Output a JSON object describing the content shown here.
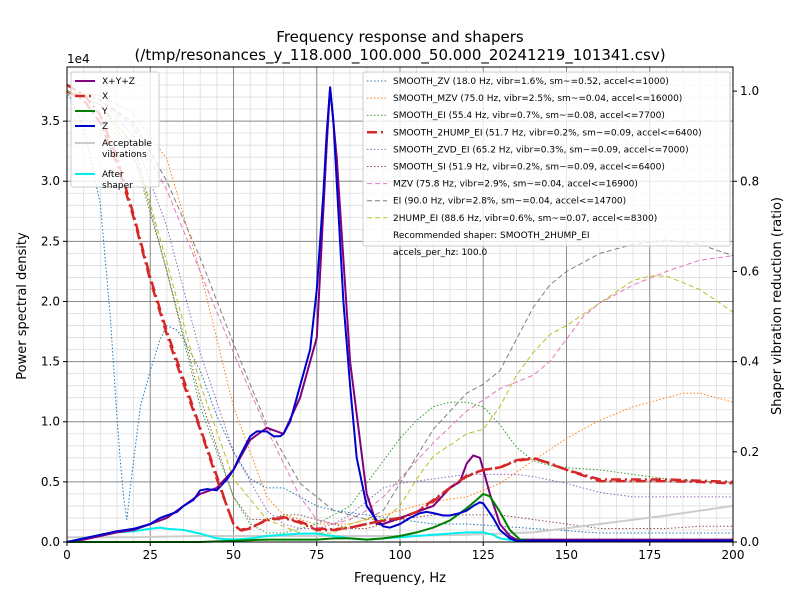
{
  "chart_data": {
    "type": "line",
    "title": "Frequency response and shapers",
    "subtitle": "(/tmp/resonances_y_118.000_100.000_50.000_20241219_101341.csv)",
    "xlabel": "Frequency, Hz",
    "ylabel": "Power spectral density",
    "y2label": "Shaper vibration reduction (ratio)",
    "y_multiplier": "1e4",
    "xlim": [
      0,
      200
    ],
    "ylim": [
      0,
      3.95
    ],
    "y2lim": [
      0,
      1.0535
    ],
    "grid": true,
    "x_ticks": [
      0,
      25,
      50,
      75,
      100,
      125,
      150,
      175,
      200
    ],
    "x_tick_labels": [
      "0",
      "25",
      "50",
      "75",
      "100",
      "125",
      "150",
      "175",
      "200"
    ],
    "y_ticks": [
      0,
      0.5,
      1.0,
      1.5,
      2.0,
      2.5,
      3.0,
      3.5
    ],
    "y_tick_labels": [
      "0.0",
      "0.5",
      "1.0",
      "1.5",
      "2.0",
      "2.5",
      "3.0",
      "3.5"
    ],
    "y2_ticks": [
      0,
      0.2,
      0.4,
      0.6,
      0.8,
      1.0
    ],
    "y2_tick_labels": [
      "0.0",
      "0.2",
      "0.4",
      "0.6",
      "0.8",
      "1.0"
    ],
    "legend_left_placement": "top-left",
    "legend_right_placement": "top-right",
    "psd_series": [
      {
        "name": "X+Y+Z",
        "color": "#800080",
        "width": 2.0,
        "dash": "",
        "x": [
          0,
          5,
          10,
          15,
          20,
          25,
          30,
          35,
          40,
          45,
          50,
          55,
          60,
          65,
          70,
          75,
          78,
          79,
          81,
          85,
          90,
          93,
          95,
          100,
          105,
          110,
          115,
          118,
          120,
          122,
          124,
          125,
          127,
          130,
          133,
          135,
          140,
          150,
          160,
          170,
          180,
          190,
          200
        ],
        "y": [
          0,
          0.02,
          0.05,
          0.08,
          0.1,
          0.15,
          0.2,
          0.3,
          0.4,
          0.45,
          0.6,
          0.85,
          0.95,
          0.9,
          1.2,
          1.7,
          3.3,
          3.78,
          3.2,
          1.5,
          0.4,
          0.15,
          0.15,
          0.2,
          0.25,
          0.3,
          0.45,
          0.5,
          0.65,
          0.72,
          0.7,
          0.6,
          0.4,
          0.15,
          0.05,
          0.02,
          0.02,
          0.02,
          0.02,
          0.02,
          0.02,
          0.02,
          0.02
        ]
      },
      {
        "name": "X",
        "color": "#d62728",
        "width": 2.5,
        "dash": "10,4,2,4",
        "x": [
          0,
          5,
          10,
          15,
          20,
          25,
          30,
          35,
          40,
          45,
          48,
          50,
          52,
          55,
          60,
          65,
          70,
          75,
          80,
          85,
          90,
          95,
          100,
          105,
          110,
          115,
          120,
          125,
          130,
          135,
          140,
          145,
          150,
          160,
          170,
          180,
          190,
          200
        ],
        "y": [
          3.8,
          3.72,
          3.55,
          3.2,
          2.72,
          2.2,
          1.75,
          1.35,
          0.95,
          0.55,
          0.3,
          0.15,
          0.1,
          0.12,
          0.18,
          0.2,
          0.16,
          0.1,
          0.1,
          0.12,
          0.15,
          0.18,
          0.2,
          0.25,
          0.35,
          0.45,
          0.55,
          0.6,
          0.62,
          0.68,
          0.7,
          0.65,
          0.6,
          0.52,
          0.52,
          0.52,
          0.51,
          0.5
        ]
      },
      {
        "name": "Y",
        "color": "#008000",
        "width": 2.0,
        "dash": "",
        "x": [
          0,
          10,
          20,
          30,
          40,
          50,
          60,
          70,
          75,
          80,
          85,
          90,
          95,
          100,
          105,
          110,
          115,
          120,
          123,
          125,
          127,
          130,
          133,
          136,
          140,
          150,
          200
        ],
        "y": [
          0,
          0,
          0,
          0,
          0,
          0.01,
          0.02,
          0.02,
          0.02,
          0.03,
          0.03,
          0.02,
          0.03,
          0.05,
          0.08,
          0.12,
          0.18,
          0.28,
          0.35,
          0.4,
          0.38,
          0.25,
          0.1,
          0.02,
          0.01,
          0.01,
          0.01
        ]
      },
      {
        "name": "Z",
        "color": "#0000cc",
        "width": 2.0,
        "dash": "",
        "x": [
          0,
          5,
          10,
          15,
          20,
          25,
          28,
          30,
          33,
          35,
          38,
          40,
          42,
          45,
          48,
          50,
          52,
          55,
          57,
          60,
          62,
          64,
          65,
          67,
          70,
          73,
          75,
          77,
          78,
          79,
          80,
          81,
          83,
          85,
          87,
          90,
          93,
          95,
          97,
          100,
          103,
          106,
          108,
          110,
          113,
          115,
          118,
          120,
          122,
          124,
          125,
          126,
          128,
          130,
          133,
          135,
          140,
          150,
          160,
          200
        ],
        "y": [
          0,
          0.03,
          0.06,
          0.09,
          0.11,
          0.15,
          0.2,
          0.22,
          0.25,
          0.3,
          0.35,
          0.43,
          0.44,
          0.43,
          0.52,
          0.6,
          0.72,
          0.88,
          0.92,
          0.92,
          0.88,
          0.88,
          0.9,
          1.0,
          1.3,
          1.6,
          2.1,
          2.9,
          3.4,
          3.78,
          3.5,
          3.0,
          2.0,
          1.3,
          0.7,
          0.3,
          0.18,
          0.13,
          0.12,
          0.15,
          0.2,
          0.24,
          0.25,
          0.24,
          0.22,
          0.22,
          0.24,
          0.26,
          0.3,
          0.33,
          0.32,
          0.28,
          0.2,
          0.1,
          0.03,
          0.01,
          0.01,
          0.01,
          0.01,
          0.01
        ]
      },
      {
        "name": "Acceptable vibrations",
        "color": "#cccccc",
        "width": 2.0,
        "dash": "",
        "x": [
          0,
          20,
          40,
          60,
          80,
          100,
          120,
          140,
          160,
          180,
          200
        ],
        "y": [
          0.04,
          0.04,
          0.05,
          0.05,
          0.05,
          0.05,
          0.06,
          0.08,
          0.15,
          0.22,
          0.3
        ]
      },
      {
        "name": "After shaper",
        "color": "#00eeee",
        "width": 2.0,
        "dash": "",
        "x": [
          0,
          5,
          10,
          15,
          20,
          25,
          28,
          30,
          35,
          40,
          45,
          50,
          55,
          60,
          65,
          70,
          75,
          80,
          85,
          90,
          95,
          100,
          110,
          120,
          125,
          128,
          130,
          135,
          150,
          200
        ],
        "y": [
          0,
          0.03,
          0.06,
          0.08,
          0.09,
          0.11,
          0.12,
          0.11,
          0.1,
          0.07,
          0.03,
          0.02,
          0.03,
          0.05,
          0.06,
          0.07,
          0.07,
          0.05,
          0.03,
          0.02,
          0.03,
          0.04,
          0.06,
          0.08,
          0.08,
          0.06,
          0.03,
          0.01,
          0.01,
          0.01
        ]
      }
    ],
    "shaper_series": [
      {
        "name": "SMOOTH_ZV (18.0 Hz, vibr=1.6%, sm~=0.52, accel<=1000)",
        "color": "#1f77b4",
        "width": 1.0,
        "dash": "1.5,2",
        "x": [
          0,
          5,
          10,
          13,
          15,
          16,
          17,
          18,
          19,
          20,
          22,
          25,
          28,
          30,
          33,
          35,
          40,
          45,
          50,
          55,
          60,
          65,
          70,
          75,
          80,
          85,
          90,
          100,
          110,
          120,
          130,
          140,
          150,
          160,
          170,
          180,
          190,
          200
        ],
        "y": [
          1.0,
          0.92,
          0.75,
          0.5,
          0.28,
          0.18,
          0.1,
          0.05,
          0.12,
          0.18,
          0.3,
          0.38,
          0.45,
          0.48,
          0.47,
          0.45,
          0.38,
          0.28,
          0.2,
          0.14,
          0.12,
          0.12,
          0.1,
          0.08,
          0.07,
          0.065,
          0.06,
          0.05,
          0.04,
          0.04,
          0.035,
          0.03,
          0.025,
          0.02,
          0.02,
          0.02,
          0.02,
          0.02
        ]
      },
      {
        "name": "SMOOTH_MZV (75.0 Hz, vibr=2.5%, sm~=0.04, accel<=16000)",
        "color": "#ff7f0e",
        "width": 1.0,
        "dash": "1.5,2",
        "x": [
          0,
          10,
          20,
          30,
          40,
          50,
          60,
          65,
          70,
          75,
          80,
          85,
          90,
          100,
          110,
          120,
          130,
          140,
          150,
          160,
          170,
          180,
          185,
          190,
          195,
          200
        ],
        "y": [
          1.0,
          0.99,
          0.95,
          0.85,
          0.6,
          0.3,
          0.1,
          0.06,
          0.05,
          0.04,
          0.04,
          0.04,
          0.05,
          0.07,
          0.09,
          0.1,
          0.13,
          0.18,
          0.23,
          0.27,
          0.3,
          0.32,
          0.33,
          0.33,
          0.32,
          0.31
        ]
      },
      {
        "name": "SMOOTH_EI (55.4 Hz, vibr=0.7%, sm~=0.08, accel<=7700)",
        "color": "#2ca02c",
        "width": 1.0,
        "dash": "1.5,2",
        "x": [
          0,
          10,
          20,
          30,
          40,
          50,
          55,
          60,
          65,
          70,
          75,
          80,
          85,
          90,
          95,
          100,
          105,
          110,
          115,
          120,
          125,
          130,
          135,
          140,
          145,
          150,
          160,
          170,
          180,
          190,
          200
        ],
        "y": [
          1.0,
          0.97,
          0.88,
          0.6,
          0.3,
          0.1,
          0.04,
          0.02,
          0.02,
          0.03,
          0.04,
          0.06,
          0.08,
          0.13,
          0.18,
          0.23,
          0.27,
          0.3,
          0.31,
          0.31,
          0.3,
          0.26,
          0.21,
          0.18,
          0.17,
          0.165,
          0.16,
          0.15,
          0.14,
          0.135,
          0.13
        ]
      },
      {
        "name": "SMOOTH_2HUMP_EI (51.7 Hz, vibr=0.2%, sm~=0.09, accel<=6400)",
        "color": "#d62728",
        "width": 2.5,
        "dash": "10,4,2,4",
        "x": [
          0,
          5,
          10,
          15,
          20,
          25,
          30,
          35,
          40,
          45,
          48,
          50,
          52,
          55,
          60,
          65,
          70,
          75,
          80,
          85,
          90,
          95,
          100,
          105,
          110,
          115,
          120,
          125,
          130,
          135,
          140,
          145,
          150,
          160,
          170,
          180,
          190,
          200
        ],
        "y": [
          1.0,
          0.98,
          0.93,
          0.84,
          0.72,
          0.58,
          0.46,
          0.35,
          0.25,
          0.14,
          0.08,
          0.04,
          0.025,
          0.03,
          0.05,
          0.055,
          0.045,
          0.03,
          0.028,
          0.032,
          0.04,
          0.047,
          0.052,
          0.066,
          0.09,
          0.12,
          0.145,
          0.16,
          0.165,
          0.18,
          0.185,
          0.175,
          0.16,
          0.135,
          0.135,
          0.135,
          0.133,
          0.13
        ]
      },
      {
        "name": "SMOOTH_ZVD_EI (65.2 Hz, vibr=0.3%, sm~=0.09, accel<=7000)",
        "color": "#9467bd",
        "width": 1.0,
        "dash": "1.5,2",
        "x": [
          0,
          10,
          20,
          30,
          40,
          50,
          60,
          65,
          70,
          75,
          80,
          85,
          90,
          95,
          100,
          110,
          120,
          125,
          130,
          135,
          140,
          150,
          160,
          170,
          180,
          190,
          200
        ],
        "y": [
          1.0,
          0.98,
          0.9,
          0.7,
          0.42,
          0.2,
          0.07,
          0.04,
          0.03,
          0.03,
          0.04,
          0.06,
          0.09,
          0.12,
          0.13,
          0.14,
          0.15,
          0.15,
          0.15,
          0.15,
          0.145,
          0.13,
          0.11,
          0.1,
          0.1,
          0.1,
          0.1
        ]
      },
      {
        "name": "SMOOTH_SI (51.9 Hz, vibr=0.2%, sm~=0.09, accel<=6400)",
        "color": "#8c564b",
        "width": 1.0,
        "dash": "1.5,2",
        "x": [
          0,
          10,
          20,
          30,
          40,
          50,
          55,
          60,
          65,
          70,
          75,
          80,
          85,
          90,
          95,
          100,
          110,
          120,
          130,
          140,
          150,
          160,
          170,
          180,
          190,
          200
        ],
        "y": [
          1.0,
          0.97,
          0.86,
          0.6,
          0.32,
          0.1,
          0.05,
          0.05,
          0.06,
          0.06,
          0.05,
          0.04,
          0.03,
          0.03,
          0.04,
          0.05,
          0.06,
          0.06,
          0.06,
          0.05,
          0.04,
          0.03,
          0.03,
          0.03,
          0.035,
          0.035
        ]
      },
      {
        "name": "MZV (75.8 Hz, vibr=2.9%, sm~=0.04, accel<=16900)",
        "color": "#e377c2",
        "width": 1.0,
        "dash": "5,3",
        "x": [
          0,
          10,
          20,
          30,
          40,
          50,
          60,
          70,
          75,
          80,
          85,
          90,
          95,
          100,
          110,
          120,
          130,
          140,
          145,
          150,
          155,
          160,
          170,
          180,
          190,
          200
        ],
        "y": [
          1.0,
          0.98,
          0.92,
          0.78,
          0.6,
          0.42,
          0.25,
          0.1,
          0.05,
          0.04,
          0.05,
          0.07,
          0.1,
          0.14,
          0.22,
          0.29,
          0.34,
          0.37,
          0.4,
          0.45,
          0.5,
          0.53,
          0.57,
          0.6,
          0.625,
          0.635
        ]
      },
      {
        "name": "EI (90.0 Hz, vibr=2.8%, sm~=0.04, accel<=14700)",
        "color": "#7f7f7f",
        "width": 1.0,
        "dash": "5,3",
        "x": [
          0,
          10,
          20,
          30,
          40,
          50,
          60,
          70,
          80,
          90,
          95,
          100,
          110,
          120,
          125,
          130,
          135,
          140,
          145,
          150,
          160,
          170,
          180,
          190,
          200
        ],
        "y": [
          1.0,
          0.98,
          0.93,
          0.8,
          0.63,
          0.44,
          0.26,
          0.13,
          0.07,
          0.05,
          0.07,
          0.13,
          0.25,
          0.33,
          0.35,
          0.38,
          0.45,
          0.52,
          0.57,
          0.6,
          0.64,
          0.66,
          0.67,
          0.66,
          0.635
        ]
      },
      {
        "name": "2HUMP_EI (88.6 Hz, vibr=0.6%, sm~=0.07, accel<=8300)",
        "color": "#bcbd22",
        "width": 1.0,
        "dash": "5,3",
        "x": [
          0,
          10,
          20,
          30,
          40,
          50,
          60,
          70,
          80,
          85,
          90,
          95,
          100,
          105,
          110,
          120,
          125,
          130,
          135,
          140,
          145,
          150,
          160,
          170,
          175,
          180,
          190,
          200
        ],
        "y": [
          1.0,
          0.97,
          0.88,
          0.62,
          0.35,
          0.14,
          0.05,
          0.02,
          0.02,
          0.04,
          0.05,
          0.05,
          0.08,
          0.14,
          0.19,
          0.24,
          0.25,
          0.3,
          0.37,
          0.42,
          0.46,
          0.48,
          0.53,
          0.58,
          0.59,
          0.59,
          0.56,
          0.51
        ]
      }
    ],
    "legend_left_entries": [
      {
        "label": "X+Y+Z",
        "series": "X+Y+Z"
      },
      {
        "label": "X",
        "series": "X"
      },
      {
        "label": "Y",
        "series": "Y"
      },
      {
        "label": "Z",
        "series": "Z"
      },
      {
        "label": "Acceptable vibrations",
        "series": "Acceptable vibrations"
      },
      {
        "label": "After shaper",
        "series": "After shaper"
      }
    ],
    "legend_right_extra": [
      "Recommended shaper: SMOOTH_2HUMP_EI",
      "accels_per_hz: 100.0"
    ]
  }
}
